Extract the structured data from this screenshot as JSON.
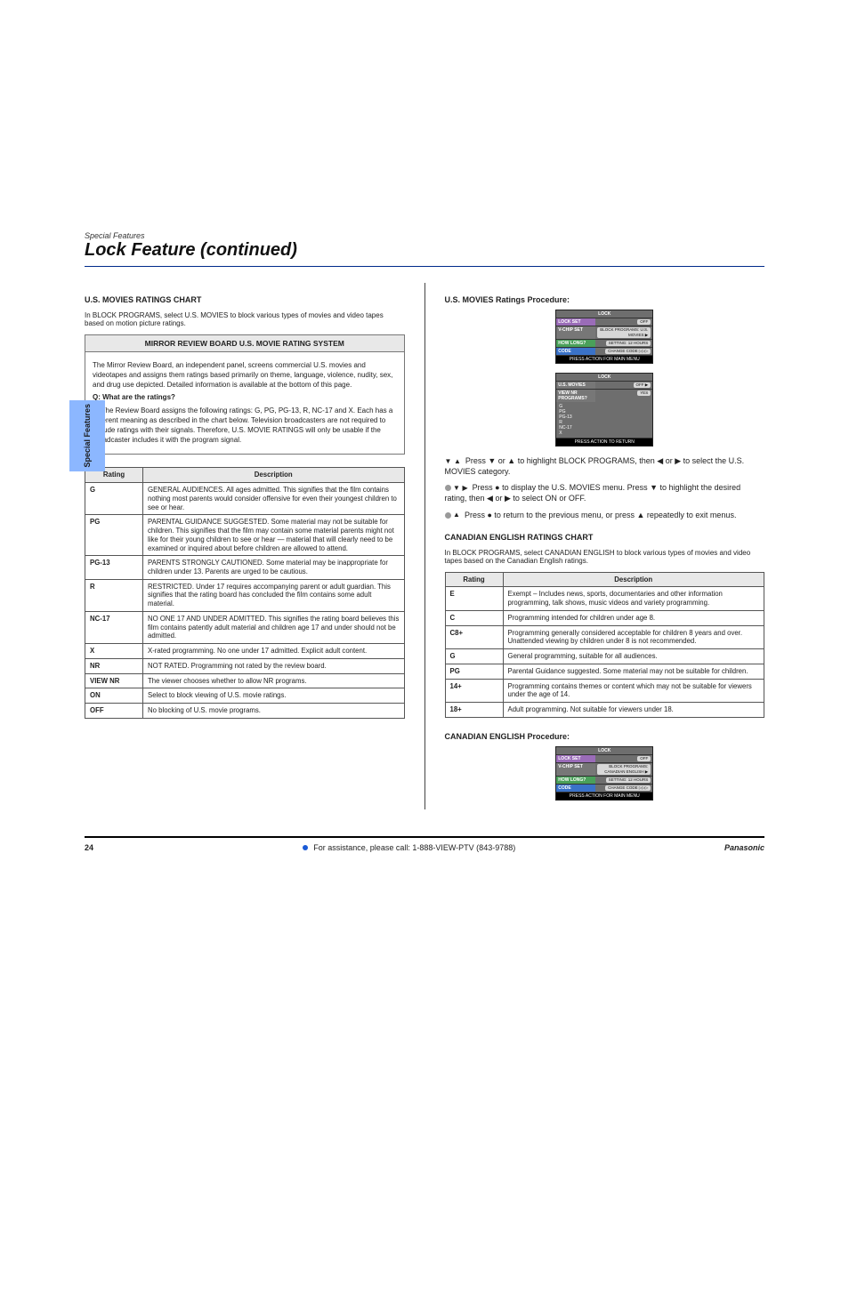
{
  "header": {
    "chapter": "Special Features",
    "title": "Lock Feature (continued)"
  },
  "side_tab": "Special Features",
  "left": {
    "movies_heading": "U.S. MOVIES RATINGS CHART",
    "intro": "In BLOCK PROGRAMS, select U.S. MOVIES to block various types of movies and video tapes based on motion picture ratings.",
    "review_title": "MIRROR REVIEW BOARD U.S. MOVIE RATING SYSTEM",
    "review_body": [
      "The Mirror Review Board, an independent panel, screens commercial U.S. movies and videotapes and assigns them ratings based primarily on theme, language, violence, nudity, sex, and drug use depicted. Detailed information is available at the bottom of this page.",
      "Q: What are the ratings?",
      "A: The Review Board assigns the following ratings: G, PG, PG-13, R, NC-17 and X. Each has a different meaning as described in the chart below. Television broadcasters are not required to include ratings with their signals. Therefore, U.S. MOVIE RATINGS will only be usable if the broadcaster includes it with the program signal."
    ],
    "ratings_table": {
      "columns": [
        "Rating",
        "Description"
      ],
      "rows": [
        [
          "G",
          "GENERAL AUDIENCES. All ages admitted. This signifies that the film contains nothing most parents would consider offensive for even their youngest children to see or hear."
        ],
        [
          "PG",
          "PARENTAL GUIDANCE SUGGESTED. Some material may not be suitable for children. This signifies that the film may contain some material parents might not like for their young children to see or hear — material that will clearly need to be examined or inquired about before children are allowed to attend."
        ],
        [
          "PG-13",
          "PARENTS STRONGLY CAUTIONED. Some material may be inappropriate for children under 13. Parents are urged to be cautious."
        ],
        [
          "R",
          "RESTRICTED. Under 17 requires accompanying parent or adult guardian. This signifies that the rating board has concluded the film contains some adult material."
        ],
        [
          "NC-17",
          "NO ONE 17 AND UNDER ADMITTED. This signifies the rating board believes this film contains patently adult material and children age 17 and under should not be admitted."
        ],
        [
          "X",
          "X-rated programming. No one under 17 admitted. Explicit adult content."
        ],
        [
          "NR",
          "NOT RATED. Programming not rated by the review board."
        ],
        [
          "VIEW NR",
          "The viewer chooses whether to allow NR programs."
        ],
        [
          "ON",
          "Select to block viewing of U.S. movie ratings."
        ],
        [
          "OFF",
          "No blocking of U.S. movie programs."
        ]
      ]
    }
  },
  "right": {
    "proc_title": "U.S. MOVIES Ratings Procedure:",
    "osd1": {
      "title": "LOCK",
      "rows": [
        {
          "style": "purple",
          "label": "LOCK SET",
          "value": "OFF"
        },
        {
          "style": "gray",
          "label": "V-CHIP SET",
          "value": "BLOCK PROGRAMS: U.S. MOVIES ▶"
        },
        {
          "style": "green",
          "label": "HOW LONG?",
          "value": "SETTING: 12 HOURS"
        },
        {
          "style": "blue",
          "label": "CODE",
          "value": "CHANGE CODE ▷▷▷"
        }
      ],
      "foot": "PRESS ACTION FOR MAIN MENU"
    },
    "osd2": {
      "title": "LOCK",
      "rows": [
        {
          "style": "gray",
          "label": "U.S. MOVIES",
          "value": "OFF ▶"
        },
        {
          "style": "gray",
          "label": "VIEW NR PROGRAMS?",
          "value": "YES"
        }
      ],
      "list": [
        "G",
        "PG",
        "PG-13",
        "R",
        "NC-17",
        "X"
      ],
      "foot": "PRESS ACTION TO RETURN"
    },
    "steps": [
      "Press ▼ or ▲ to highlight BLOCK PROGRAMS, then ◀ or ▶ to select the U.S. MOVIES category.",
      "Press ● to display the U.S. MOVIES menu. Press ▼ to highlight the desired rating, then ◀ or ▶ to select ON or OFF.",
      "Press ● to return to the previous menu, or press ▲ repeatedly to exit menus."
    ],
    "eng_heading": "CANADIAN ENGLISH RATINGS CHART",
    "eng_intro": "In BLOCK PROGRAMS, select CANADIAN ENGLISH to block various types of movies and video tapes based on the Canadian English ratings.",
    "eng_table": {
      "columns": [
        "Rating",
        "Description"
      ],
      "rows": [
        [
          "E",
          "Exempt – Includes news, sports, documentaries and other information programming, talk shows, music videos and variety programming."
        ],
        [
          "C",
          "Programming intended for children under age 8."
        ],
        [
          "C8+",
          "Programming generally considered acceptable for children 8 years and over. Unattended viewing by children under 8 is not recommended."
        ],
        [
          "G",
          "General programming, suitable for all audiences."
        ],
        [
          "PG",
          "Parental Guidance suggested. Some material may not be suitable for children."
        ],
        [
          "14+",
          "Programming contains themes or content which may not be suitable for viewers under the age of 14."
        ],
        [
          "18+",
          "Adult programming. Not suitable for viewers under 18."
        ]
      ]
    },
    "eng_proc_title": "CANADIAN ENGLISH Procedure:",
    "osd3": {
      "title": "LOCK",
      "rows": [
        {
          "style": "purple",
          "label": "LOCK SET",
          "value": "OFF"
        },
        {
          "style": "gray",
          "label": "V-CHIP SET",
          "value": "BLOCK PROGRAMS: CANADIAN ENGLISH ▶"
        },
        {
          "style": "green",
          "label": "HOW LONG?",
          "value": "SETTING: 12 HOURS"
        },
        {
          "style": "blue",
          "label": "CODE",
          "value": "CHANGE CODE ▷▷▷"
        }
      ],
      "foot": "PRESS ACTION FOR MAIN MENU"
    }
  },
  "footer": {
    "page": "24",
    "brand": "Panasonic",
    "note": "For assistance, please call: 1-888-VIEW-PTV (843-9788)"
  }
}
